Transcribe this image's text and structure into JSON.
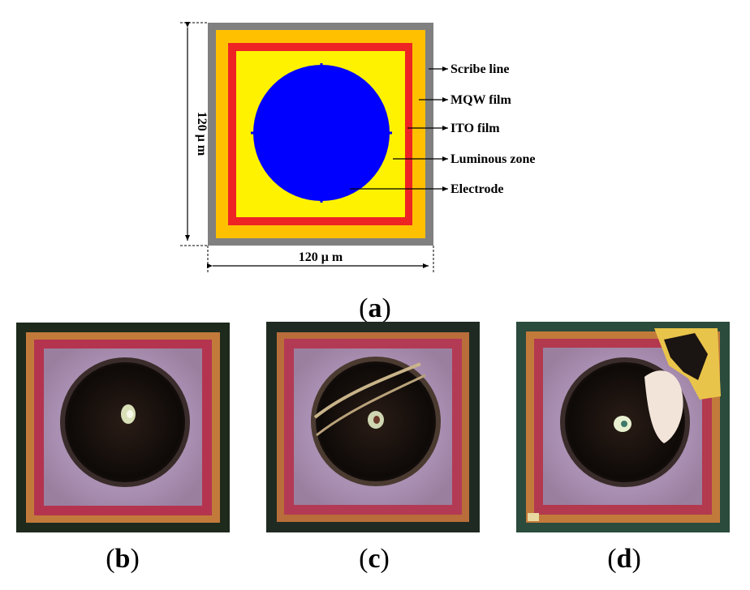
{
  "diagram": {
    "layers": [
      {
        "id": "scribe",
        "color": "#808080"
      },
      {
        "id": "mqw",
        "color": "#FFC000"
      },
      {
        "id": "ito_border",
        "color": "#EE2424"
      },
      {
        "id": "ito",
        "color": "#FFF200"
      },
      {
        "id": "electrode",
        "color": "#0000FF"
      }
    ],
    "labels": {
      "scribe": "Scribe line",
      "mqw": "MQW film",
      "ito": "ITO film",
      "luminous": "Luminous zone",
      "electrode": "Electrode"
    },
    "dim_vertical": "120 μ m",
    "dim_horizontal": "120 μ m"
  },
  "captions": {
    "a": {
      "open": "(",
      "letter": "a",
      "close": ")"
    },
    "b": {
      "open": "(",
      "letter": "b",
      "close": ")"
    },
    "c": {
      "open": "(",
      "letter": "c",
      "close": ")"
    },
    "d": {
      "open": "(",
      "letter": "d",
      "close": ")"
    }
  },
  "photos": {
    "b": {
      "features": "clean electrode"
    },
    "c": {
      "features": "scratches across electrode"
    },
    "d": {
      "features": "chipped corner and damaged electrode"
    }
  }
}
